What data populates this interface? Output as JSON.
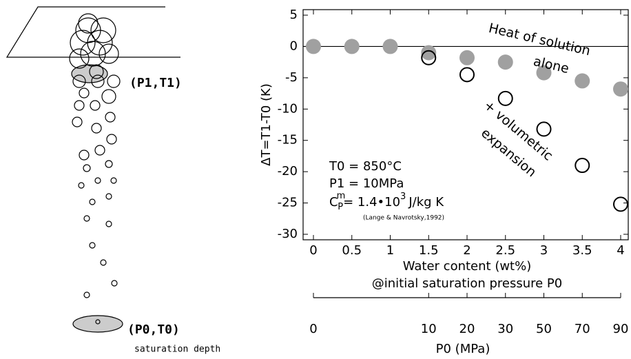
{
  "diagram": {
    "p1_label": "(P1,T1)",
    "p0_label": "(P0,T0)",
    "depth_label": "saturation depth"
  },
  "chart_data": {
    "type": "scatter",
    "y_label": "ΔT=T1-T0 (K)",
    "x_label": "Water content (wt%)",
    "x_label2": "@initial saturation pressure P0",
    "xlim": [
      0,
      4
    ],
    "xticks": [
      0,
      0.5,
      1,
      1.5,
      2,
      2.5,
      3,
      3.5,
      4
    ],
    "ylim": [
      -30,
      5
    ],
    "yticks": [
      5,
      0,
      -5,
      -10,
      -15,
      -20,
      -25,
      -30
    ],
    "series": [
      {
        "name": [
          "Heat of solution",
          "alone"
        ],
        "color": "#a0a0a0",
        "filled": true,
        "x": [
          0,
          0.5,
          1,
          1.5,
          2,
          2.5,
          3,
          3.5,
          4
        ],
        "values": [
          0,
          0,
          0,
          -1,
          -1.8,
          -2.5,
          -4.2,
          -5.5,
          -6.8
        ]
      },
      {
        "name": [
          "+ volumetric",
          "expansion"
        ],
        "color": "#000000",
        "filled": false,
        "x": [
          1.5,
          2,
          2.5,
          3,
          3.5,
          4
        ],
        "values": [
          -1.8,
          -4.5,
          -8.3,
          -13.2,
          -19,
          -25.2
        ]
      }
    ],
    "notes": [
      "T0 = 850°C",
      "P1 = 10MPa"
    ],
    "cp": {
      "c": "C",
      "sup": "m",
      "sub": "P",
      "eq": "= 1.4•10",
      "exp": "3",
      "unit": "J/kg K"
    },
    "reference": "(Lange & Navrotsky,1992)",
    "p0_axis": {
      "title": "P0 (MPa)",
      "ticks": [
        0,
        10,
        20,
        30,
        50,
        70,
        90
      ],
      "at_wt": [
        0,
        1.5,
        2,
        2.5,
        3,
        3.5,
        4
      ]
    }
  }
}
